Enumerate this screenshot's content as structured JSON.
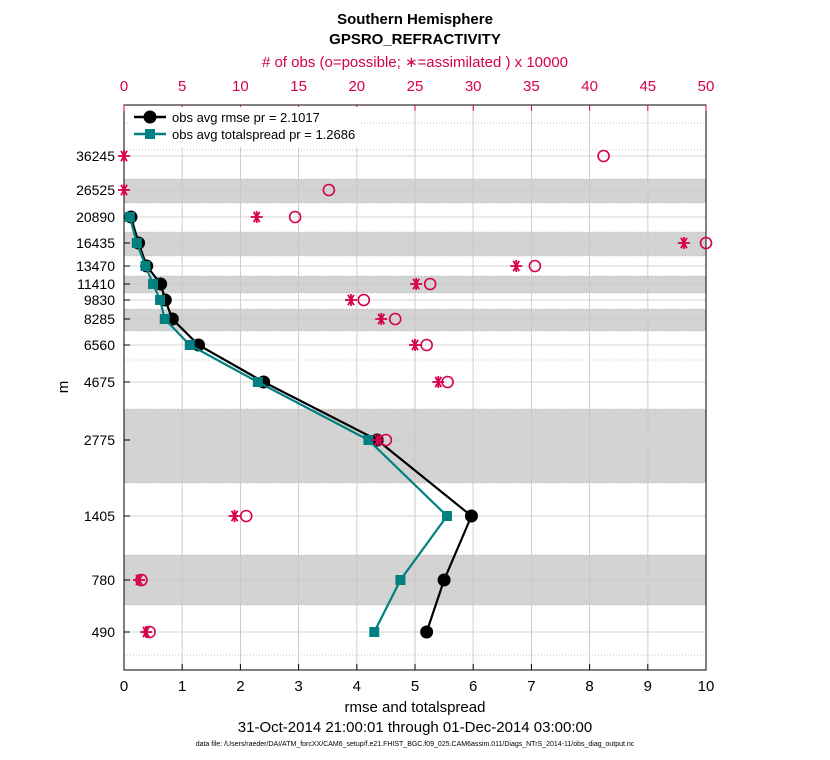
{
  "chart_data": {
    "type": "scatter",
    "title": "Southern Hemisphere",
    "subtitle": "GPSRO_REFRACTIVITY",
    "top_axis_label": "# of obs (o=possible; ∗=assimilated ) x 10000",
    "xlabel": "rmse and totalspread",
    "ylabel": "m",
    "date_range": "31-Oct-2014 21:00:01 through 01-Dec-2014 03:00:00",
    "footnote": "data file: /Users/raeder/DAI/ATM_forcXX/CAM6_setup/f.e21.FHIST_BGC.f09_025.CAM6assim.011/Diags_NTrS_2014-11/obs_diag_output.nc",
    "xlim": [
      0,
      10
    ],
    "x_ticks": [
      "0",
      "1",
      "2",
      "3",
      "4",
      "5",
      "6",
      "7",
      "8",
      "9",
      "10"
    ],
    "top_xlim": [
      0,
      50
    ],
    "top_ticks": [
      "0",
      "5",
      "10",
      "15",
      "20",
      "25",
      "30",
      "35",
      "40",
      "45",
      "50"
    ],
    "levels": [
      "36245",
      "26525",
      "20890",
      "16435",
      "13470",
      "11410",
      "9830",
      "8285",
      "6560",
      "4675",
      "2775",
      "1405",
      "780",
      "490"
    ],
    "bands": [
      [
        2,
        3
      ],
      [
        4,
        5
      ],
      [
        6,
        7
      ],
      [
        8,
        9
      ],
      [
        11,
        12
      ],
      [
        13,
        14
      ]
    ],
    "colors": {
      "rmse": "#000000",
      "spread": "#008080",
      "obs": "#d6004f",
      "band": "#d3d3d3"
    },
    "legend": [
      "obs avg rmse pr = 2.1017",
      "obs avg totalspread pr = 1.2686"
    ],
    "series": [
      {
        "name": "obs avg rmse",
        "levels": [
          2,
          3,
          4,
          5,
          6,
          7,
          8,
          9,
          10,
          11,
          12,
          13
        ],
        "values": [
          0.12,
          0.25,
          0.39,
          0.63,
          0.71,
          0.83,
          1.28,
          2.4,
          4.35,
          5.97,
          5.5,
          5.2
        ]
      },
      {
        "name": "obs avg totalspread",
        "levels": [
          2,
          3,
          4,
          5,
          6,
          7,
          8,
          9,
          10,
          11,
          12,
          13
        ],
        "values": [
          0.1,
          0.22,
          0.37,
          0.5,
          0.62,
          0.7,
          1.13,
          2.3,
          4.2,
          5.55,
          4.75,
          4.3
        ]
      }
    ],
    "obs_possible": [
      41.2,
      17.6,
      14.7,
      50.0,
      35.3,
      26.3,
      20.6,
      23.3,
      26.0,
      27.8,
      22.5,
      10.5,
      1.5,
      2.2
    ],
    "obs_assimilated": [
      0.0,
      0.0,
      11.4,
      48.1,
      33.7,
      25.1,
      19.5,
      22.1,
      25.0,
      27.0,
      21.8,
      9.5,
      1.3,
      1.9
    ]
  }
}
